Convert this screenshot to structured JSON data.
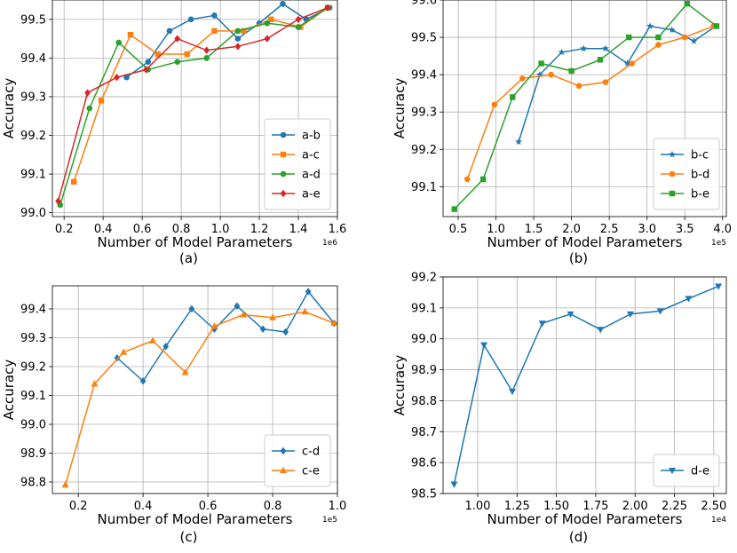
{
  "colors": {
    "blue": "#1f77b4",
    "orange": "#ff7f0e",
    "green": "#2ca02c",
    "red": "#d62728"
  },
  "chart_data": [
    {
      "type": "line",
      "caption": "(a)",
      "xlabel": "Number of Model Parameters",
      "ylabel": "Accuracy",
      "x_scale_label": "1e6",
      "xlim": [
        0.14,
        1.6
      ],
      "ylim": [
        98.99,
        99.55
      ],
      "xticks": [
        0.2,
        0.4,
        0.6,
        0.8,
        1.0,
        1.2,
        1.4,
        1.6
      ],
      "xtick_labels": [
        "0.2",
        "0.4",
        "0.6",
        "0.8",
        "1.0",
        "1.2",
        "1.4",
        "1.6"
      ],
      "yticks": [
        99.0,
        99.1,
        99.2,
        99.3,
        99.4,
        99.5
      ],
      "ytick_labels": [
        "99.0",
        "99.1",
        "99.2",
        "99.3",
        "99.4",
        "99.5"
      ],
      "legend_position": "lower-right",
      "series": [
        {
          "name": "a-b",
          "color": "#1f77b4",
          "marker": "circle",
          "x": [
            0.52,
            0.63,
            0.74,
            0.85,
            0.97,
            1.09,
            1.2,
            1.32,
            1.44,
            1.56
          ],
          "y": [
            99.35,
            99.39,
            99.47,
            99.5,
            99.51,
            99.45,
            99.49,
            99.54,
            99.5,
            99.53
          ]
        },
        {
          "name": "a-c",
          "color": "#ff7f0e",
          "marker": "square",
          "x": [
            0.25,
            0.39,
            0.54,
            0.68,
            0.83,
            0.97,
            1.12,
            1.26,
            1.41,
            1.55
          ],
          "y": [
            99.08,
            99.29,
            99.46,
            99.41,
            99.41,
            99.47,
            99.47,
            99.5,
            99.48,
            99.53
          ]
        },
        {
          "name": "a-d",
          "color": "#2ca02c",
          "marker": "circle",
          "x": [
            0.18,
            0.33,
            0.48,
            0.63,
            0.78,
            0.93,
            1.09,
            1.24,
            1.4,
            1.55
          ],
          "y": [
            99.02,
            99.27,
            99.44,
            99.37,
            99.39,
            99.4,
            99.47,
            99.49,
            99.48,
            99.53
          ]
        },
        {
          "name": "a-e",
          "color": "#d62728",
          "marker": "diamond",
          "x": [
            0.17,
            0.32,
            0.47,
            0.62,
            0.78,
            0.93,
            1.09,
            1.24,
            1.4,
            1.55
          ],
          "y": [
            99.03,
            99.31,
            99.35,
            99.37,
            99.45,
            99.42,
            99.43,
            99.45,
            99.5,
            99.53
          ]
        }
      ]
    },
    {
      "type": "line",
      "caption": "(b)",
      "xlabel": "Number of Model Parameters",
      "ylabel": "Accuracy",
      "x_scale_label": "1e5",
      "xlim": [
        0.3,
        4.05
      ],
      "ylim": [
        99.02,
        99.6
      ],
      "xticks": [
        0.5,
        1.0,
        1.5,
        2.0,
        2.5,
        3.0,
        3.5,
        4.0
      ],
      "xtick_labels": [
        "0.5",
        "1.0",
        "1.5",
        "2.0",
        "2.5",
        "3.0",
        "3.5",
        "4.0"
      ],
      "yticks": [
        99.1,
        99.2,
        99.3,
        99.4,
        99.5,
        99.6
      ],
      "ytick_labels": [
        "99.1",
        "99.2",
        "99.3",
        "99.4",
        "99.5",
        "99.6"
      ],
      "legend_position": "lower-right",
      "series": [
        {
          "name": "b-c",
          "color": "#1f77b4",
          "marker": "star",
          "x": [
            1.3,
            1.58,
            1.87,
            2.16,
            2.45,
            2.74,
            3.04,
            3.33,
            3.62,
            3.91
          ],
          "y": [
            99.22,
            99.4,
            99.46,
            99.47,
            99.47,
            99.43,
            99.53,
            99.52,
            99.49,
            99.53
          ]
        },
        {
          "name": "b-d",
          "color": "#ff7f0e",
          "marker": "circle",
          "x": [
            0.62,
            0.98,
            1.35,
            1.73,
            2.1,
            2.45,
            2.8,
            3.15,
            3.5,
            3.88
          ],
          "y": [
            99.12,
            99.32,
            99.39,
            99.4,
            99.37,
            99.38,
            99.43,
            99.48,
            99.5,
            99.53
          ]
        },
        {
          "name": "b-e",
          "color": "#2ca02c",
          "marker": "square",
          "x": [
            0.45,
            0.83,
            1.22,
            1.6,
            2.0,
            2.38,
            2.76,
            3.15,
            3.53,
            3.92
          ],
          "y": [
            99.04,
            99.12,
            99.34,
            99.43,
            99.41,
            99.44,
            99.5,
            99.5,
            99.59,
            99.53
          ]
        }
      ]
    },
    {
      "type": "line",
      "caption": "(c)",
      "xlabel": "Number of Model Parameters",
      "ylabel": "Accuracy",
      "x_scale_label": "1e5",
      "xlim": [
        0.12,
        1.0
      ],
      "ylim": [
        98.76,
        99.48
      ],
      "xticks": [
        0.2,
        0.4,
        0.6,
        0.8,
        1.0
      ],
      "xtick_labels": [
        "0.2",
        "0.4",
        "0.6",
        "0.8",
        "1.0"
      ],
      "yticks": [
        98.8,
        98.9,
        99.0,
        99.1,
        99.2,
        99.3,
        99.4
      ],
      "ytick_labels": [
        "98.8",
        "98.9",
        "99.0",
        "99.1",
        "99.2",
        "99.3",
        "99.4"
      ],
      "legend_position": "lower-right",
      "series": [
        {
          "name": "c-d",
          "color": "#1f77b4",
          "marker": "diamond",
          "x": [
            0.32,
            0.4,
            0.47,
            0.55,
            0.62,
            0.69,
            0.77,
            0.84,
            0.91,
            0.99
          ],
          "y": [
            99.23,
            99.15,
            99.27,
            99.4,
            99.33,
            99.41,
            99.33,
            99.32,
            99.46,
            99.35
          ]
        },
        {
          "name": "c-e",
          "color": "#ff7f0e",
          "marker": "triangle-up",
          "x": [
            0.16,
            0.25,
            0.34,
            0.43,
            0.53,
            0.62,
            0.71,
            0.8,
            0.9,
            0.99
          ],
          "y": [
            98.79,
            99.14,
            99.25,
            99.29,
            99.18,
            99.34,
            99.38,
            99.37,
            99.39,
            99.35
          ]
        }
      ]
    },
    {
      "type": "line",
      "caption": "(d)",
      "xlabel": "Number of Model Parameters",
      "ylabel": "Accuracy",
      "x_scale_label": "1e4",
      "xlim": [
        0.78,
        2.58
      ],
      "ylim": [
        98.5,
        99.2
      ],
      "xticks": [
        1.0,
        1.25,
        1.5,
        1.75,
        2.0,
        2.25,
        2.5
      ],
      "xtick_labels": [
        "1.00",
        "1.25",
        "1.50",
        "1.75",
        "2.00",
        "2.25",
        "2.50"
      ],
      "yticks": [
        98.5,
        98.6,
        98.7,
        98.8,
        98.9,
        99.0,
        99.1,
        99.2
      ],
      "ytick_labels": [
        "98.5",
        "98.6",
        "98.7",
        "98.8",
        "98.9",
        "99.0",
        "99.1",
        "99.2"
      ],
      "legend_position": "lower-right",
      "series": [
        {
          "name": "d-e",
          "color": "#1f77b4",
          "marker": "triangle-down",
          "x": [
            0.85,
            1.04,
            1.22,
            1.41,
            1.59,
            1.78,
            1.97,
            2.16,
            2.34,
            2.53
          ],
          "y": [
            98.53,
            98.98,
            98.83,
            99.05,
            99.08,
            99.03,
            99.08,
            99.09,
            99.13,
            99.17
          ]
        }
      ]
    }
  ]
}
